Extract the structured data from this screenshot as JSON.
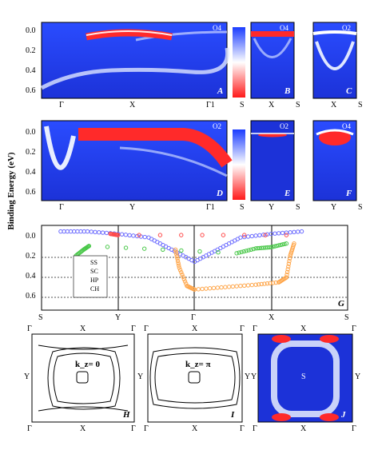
{
  "y_axis_label": "Binding Energy (eV)",
  "energy_ticks": [
    "0.0",
    "0.2",
    "0.4",
    "0.6"
  ],
  "panels": {
    "A": {
      "label": "A",
      "tag": "O4",
      "xticks": [
        "Γ",
        "X",
        "Γ1"
      ]
    },
    "B": {
      "label": "B",
      "tag": "O4",
      "xticks": [
        "S",
        "X",
        "S"
      ]
    },
    "C": {
      "label": "C",
      "tag": "O2",
      "xticks": [
        "S",
        "X",
        "S"
      ]
    },
    "D": {
      "label": "D",
      "tag": "O2",
      "xticks": [
        "Γ",
        "Y",
        "Γ1"
      ]
    },
    "E": {
      "label": "E",
      "tag": "O2",
      "xticks": [
        "S",
        "Y",
        "S"
      ]
    },
    "F": {
      "label": "F",
      "tag": "O4",
      "xticks": [
        "S",
        "Y",
        "S"
      ]
    },
    "H": {
      "label": "H",
      "kz": "k_z= 0"
    },
    "I": {
      "label": "I",
      "kz": "k_z= π"
    },
    "J": {
      "label": "J",
      "center": "S"
    }
  },
  "fs_labels": {
    "corner": "Γ",
    "edge_x": "X",
    "edge_y": "Y"
  },
  "colors": {
    "blue": "#1a3cff",
    "white": "#ffffff",
    "red": "#ff1a1a",
    "ss": "#6a6aff",
    "sc": "#ff4a4a",
    "hp": "#4ac84a",
    "ch": "#ffa64a"
  },
  "chart_data": {
    "type": "scatter",
    "title": "",
    "panel_label": "G",
    "xlabel": "",
    "ylabel": "Binding Energy (eV)",
    "categories": [
      "S",
      "Y",
      "Γ",
      "X",
      "S"
    ],
    "ylim": [
      0.65,
      -0.05
    ],
    "yticks": [
      "0.0",
      "0.2",
      "0.4",
      "0.6"
    ],
    "legend": "left",
    "series": [
      {
        "name": "SS",
        "points": [
          [
            0.25,
            0.0
          ],
          [
            0.6,
            0.0
          ],
          [
            1.0,
            0.02
          ],
          [
            1.4,
            0.05
          ],
          [
            1.7,
            0.15
          ],
          [
            2.0,
            0.25
          ],
          [
            2.3,
            0.15
          ],
          [
            2.6,
            0.05
          ],
          [
            3.0,
            0.02
          ],
          [
            3.4,
            0.0
          ]
        ]
      },
      {
        "name": "SC",
        "points": [
          [
            0.9,
            0.02
          ],
          [
            1.0,
            0.03
          ],
          [
            3.2,
            0.03
          ]
        ]
      },
      {
        "name": "HP",
        "points": [
          [
            0.45,
            0.2
          ],
          [
            0.55,
            0.15
          ],
          [
            0.62,
            0.12
          ],
          [
            2.55,
            0.18
          ],
          [
            2.8,
            0.14
          ],
          [
            3.0,
            0.13
          ],
          [
            3.2,
            0.1
          ]
        ]
      },
      {
        "name": "CH",
        "points": [
          [
            1.75,
            0.15
          ],
          [
            1.8,
            0.3
          ],
          [
            1.9,
            0.45
          ],
          [
            2.0,
            0.48
          ],
          [
            2.4,
            0.46
          ],
          [
            2.8,
            0.44
          ],
          [
            3.1,
            0.42
          ],
          [
            3.2,
            0.38
          ],
          [
            3.25,
            0.2
          ],
          [
            3.3,
            0.1
          ]
        ]
      }
    ]
  }
}
